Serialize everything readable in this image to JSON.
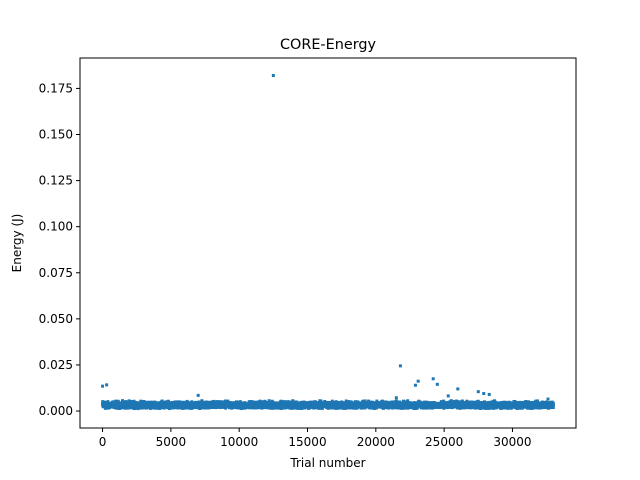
{
  "chart_data": {
    "type": "scatter",
    "title": "CORE-Energy",
    "xlabel": "Trial number",
    "ylabel": "Energy (J)",
    "xlim": [
      -1650,
      34650
    ],
    "ylim": [
      -0.0092,
      0.1915
    ],
    "x_ticks": [
      0,
      5000,
      10000,
      15000,
      20000,
      25000,
      30000
    ],
    "x_tick_labels": [
      "0",
      "5000",
      "10000",
      "15000",
      "20000",
      "25000",
      "30000"
    ],
    "y_ticks": [
      0.0,
      0.025,
      0.05,
      0.075,
      0.1,
      0.125,
      0.15,
      0.175
    ],
    "y_tick_labels": [
      "0.000",
      "0.025",
      "0.050",
      "0.075",
      "0.100",
      "0.125",
      "0.150",
      "0.175"
    ],
    "grid": false,
    "legend": "none",
    "marker_color": "#1f77b4",
    "series": [
      {
        "x_range": [
          0,
          33000
        ],
        "point_count": 33000,
        "baseline_y_range": [
          0.0005,
          0.006
        ],
        "notable_points": [
          {
            "x": 12500,
            "y": 0.182
          },
          {
            "x": 21800,
            "y": 0.0245
          },
          {
            "x": 24200,
            "y": 0.0175
          },
          {
            "x": 23100,
            "y": 0.0162
          },
          {
            "x": 22900,
            "y": 0.014
          },
          {
            "x": 24500,
            "y": 0.0145
          },
          {
            "x": 26000,
            "y": 0.012
          },
          {
            "x": 27500,
            "y": 0.0105
          },
          {
            "x": 27900,
            "y": 0.0095
          },
          {
            "x": 28300,
            "y": 0.009
          },
          {
            "x": 300,
            "y": 0.0142
          },
          {
            "x": 0,
            "y": 0.0135
          },
          {
            "x": 7000,
            "y": 0.0085
          },
          {
            "x": 32600,
            "y": 0.0065
          },
          {
            "x": 21500,
            "y": 0.0072
          },
          {
            "x": 25300,
            "y": 0.0082
          }
        ]
      }
    ]
  }
}
